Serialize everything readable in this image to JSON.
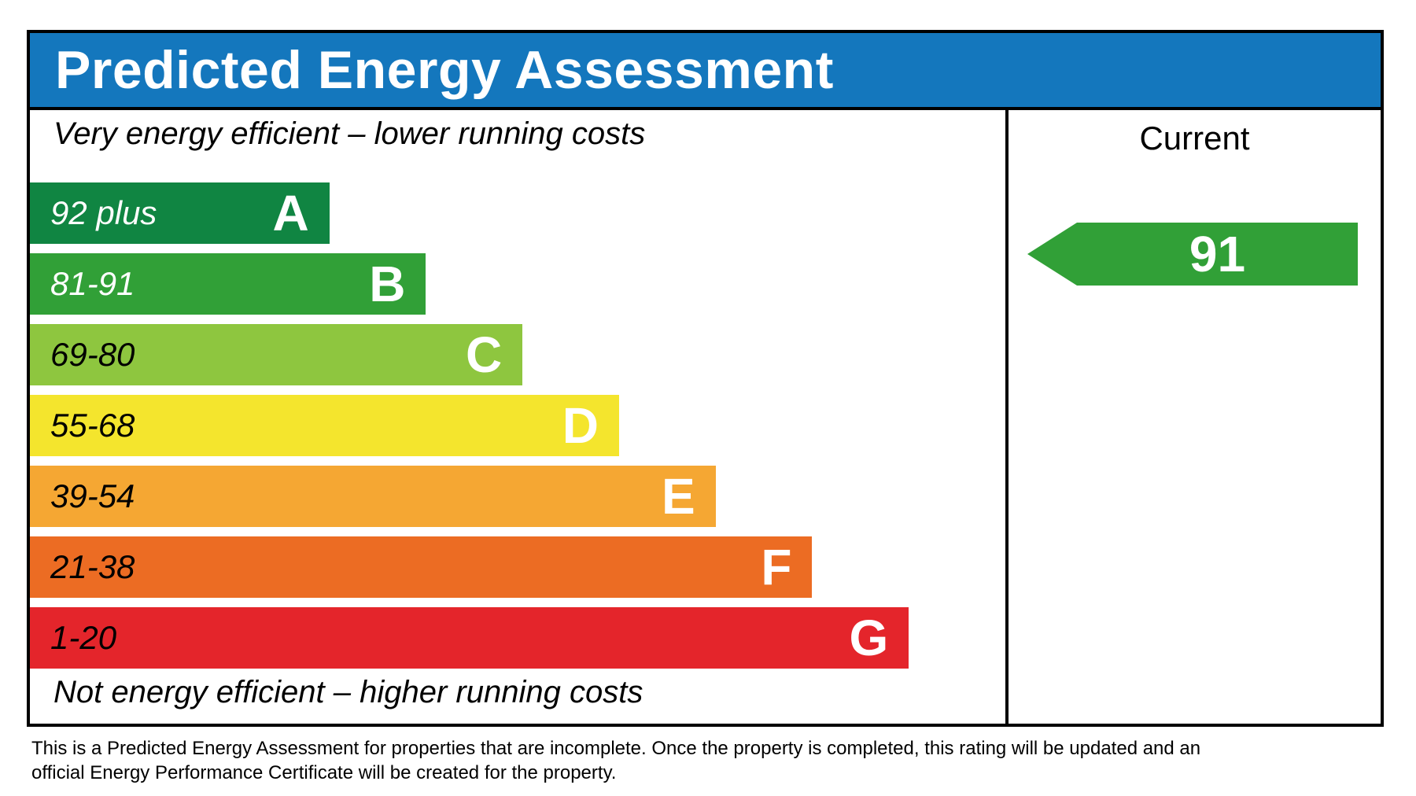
{
  "header": {
    "title": "Predicted Energy Assessment",
    "background_color": "#1477bd"
  },
  "chart": {
    "top_label": "Very energy efficient – lower running costs",
    "bottom_label": "Not energy efficient – higher running costs",
    "bands": [
      {
        "grade": "A",
        "range": "92 plus",
        "color": "#108542",
        "range_label_color": "#ffffff",
        "width_pct": 30.7
      },
      {
        "grade": "B",
        "range": "81-91",
        "color": "#31a037",
        "range_label_color": "#ffffff",
        "width_pct": 40.6
      },
      {
        "grade": "C",
        "range": "69-80",
        "color": "#8ec63f",
        "range_label_color": "#000000",
        "width_pct": 50.5
      },
      {
        "grade": "D",
        "range": "55-68",
        "color": "#f4e52d",
        "range_label_color": "#000000",
        "width_pct": 60.4
      },
      {
        "grade": "E",
        "range": "39-54",
        "color": "#f5a733",
        "range_label_color": "#000000",
        "width_pct": 70.3
      },
      {
        "grade": "F",
        "range": "21-38",
        "color": "#ec6c23",
        "range_label_color": "#000000",
        "width_pct": 80.2
      },
      {
        "grade": "G",
        "range": "1-20",
        "color": "#e4252b",
        "range_label_color": "#000000",
        "width_pct": 90.1
      }
    ]
  },
  "current_panel": {
    "title": "Current",
    "rating": "91",
    "arrow_color": "#31a037"
  },
  "footer": {
    "line1": "This is a Predicted Energy Assessment for properties that are incomplete. Once the property is completed, this rating will be updated and an",
    "line2": "official Energy Performance Certificate will be created for the property."
  },
  "chart_data": {
    "type": "bar",
    "title": "Predicted Energy Assessment",
    "orientation": "horizontal",
    "categories": [
      "A",
      "B",
      "C",
      "D",
      "E",
      "F",
      "G"
    ],
    "band_score_ranges": [
      "92 plus",
      "81-91",
      "69-80",
      "55-68",
      "39-54",
      "21-38",
      "1-20"
    ],
    "band_relative_widths_pct": [
      30.7,
      40.6,
      50.5,
      60.4,
      70.3,
      80.2,
      90.1
    ],
    "band_colors": [
      "#108542",
      "#31a037",
      "#8ec63f",
      "#f4e52d",
      "#f5a733",
      "#ec6c23",
      "#e4252b"
    ],
    "top_annotation": "Very energy efficient – lower running costs",
    "bottom_annotation": "Not energy efficient – higher running costs",
    "series": [
      {
        "name": "Current",
        "value": 91,
        "band": "B",
        "marker": "left-pointing-arrow",
        "color": "#31a037"
      }
    ],
    "scale": [
      1,
      100
    ],
    "legend_position": "right-column-header",
    "grid": false
  }
}
